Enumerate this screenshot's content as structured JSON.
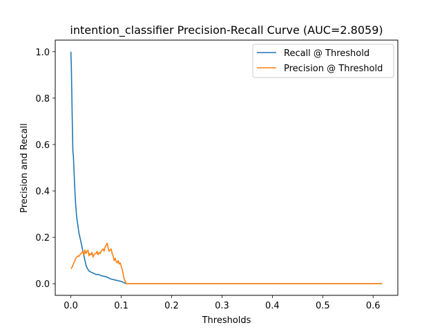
{
  "chart_data": {
    "type": "line",
    "title": "intention_classifier Precision-Recall Curve (AUC=2.8059)",
    "xlabel": "Thresholds",
    "ylabel": "Precision and Recall",
    "xlim": [
      -0.031,
      0.649
    ],
    "ylim": [
      -0.05,
      1.05
    ],
    "xticks": [
      0.0,
      0.1,
      0.2,
      0.3,
      0.4,
      0.5,
      0.6
    ],
    "xtick_labels": [
      "0.0",
      "0.1",
      "0.2",
      "0.3",
      "0.4",
      "0.5",
      "0.6"
    ],
    "yticks": [
      0.0,
      0.2,
      0.4,
      0.6,
      0.8,
      1.0
    ],
    "ytick_labels": [
      "0.0",
      "0.2",
      "0.4",
      "0.6",
      "0.8",
      "1.0"
    ],
    "grid": false,
    "legend_position": "upper right",
    "series": [
      {
        "name": "Recall @ Threshold",
        "color": "#1f77b4",
        "x": [
          0.0,
          0.001,
          0.002,
          0.003,
          0.004,
          0.005,
          0.006,
          0.007,
          0.008,
          0.009,
          0.01,
          0.011,
          0.012,
          0.014,
          0.016,
          0.018,
          0.02,
          0.022,
          0.024,
          0.026,
          0.028,
          0.03,
          0.033,
          0.036,
          0.04,
          0.045,
          0.05,
          0.055,
          0.06,
          0.07,
          0.08,
          0.09,
          0.1,
          0.105,
          0.11,
          0.15,
          0.2,
          0.3,
          0.4,
          0.5,
          0.618
        ],
        "y": [
          1.0,
          0.93,
          0.8,
          0.68,
          0.57,
          0.55,
          0.5,
          0.45,
          0.4,
          0.36,
          0.33,
          0.3,
          0.28,
          0.25,
          0.22,
          0.2,
          0.18,
          0.16,
          0.14,
          0.12,
          0.1,
          0.08,
          0.065,
          0.055,
          0.05,
          0.045,
          0.04,
          0.04,
          0.035,
          0.03,
          0.02,
          0.015,
          0.01,
          0.005,
          0.0,
          0.0,
          0.0,
          0.0,
          0.0,
          0.0,
          0.0
        ]
      },
      {
        "name": "Precision @ Threshold",
        "color": "#ff7f0e",
        "x": [
          0.0,
          0.002,
          0.004,
          0.006,
          0.008,
          0.01,
          0.012,
          0.014,
          0.016,
          0.018,
          0.02,
          0.022,
          0.024,
          0.026,
          0.028,
          0.03,
          0.032,
          0.034,
          0.036,
          0.038,
          0.04,
          0.042,
          0.044,
          0.046,
          0.048,
          0.05,
          0.052,
          0.054,
          0.056,
          0.058,
          0.06,
          0.062,
          0.064,
          0.066,
          0.068,
          0.07,
          0.072,
          0.074,
          0.076,
          0.078,
          0.08,
          0.082,
          0.084,
          0.086,
          0.088,
          0.09,
          0.092,
          0.094,
          0.096,
          0.098,
          0.1,
          0.102,
          0.104,
          0.106,
          0.108,
          0.11,
          0.15,
          0.2,
          0.3,
          0.4,
          0.5,
          0.618
        ],
        "y": [
          0.065,
          0.07,
          0.08,
          0.09,
          0.1,
          0.11,
          0.115,
          0.12,
          0.118,
          0.125,
          0.13,
          0.135,
          0.14,
          0.125,
          0.145,
          0.13,
          0.14,
          0.145,
          0.12,
          0.13,
          0.125,
          0.135,
          0.115,
          0.125,
          0.13,
          0.13,
          0.14,
          0.125,
          0.135,
          0.13,
          0.14,
          0.145,
          0.15,
          0.14,
          0.16,
          0.165,
          0.175,
          0.155,
          0.14,
          0.145,
          0.15,
          0.13,
          0.12,
          0.1,
          0.11,
          0.095,
          0.09,
          0.1,
          0.085,
          0.09,
          0.075,
          0.06,
          0.04,
          0.02,
          0.01,
          0.0,
          0.0,
          0.0,
          0.0,
          0.0,
          0.0,
          0.0
        ]
      }
    ]
  }
}
